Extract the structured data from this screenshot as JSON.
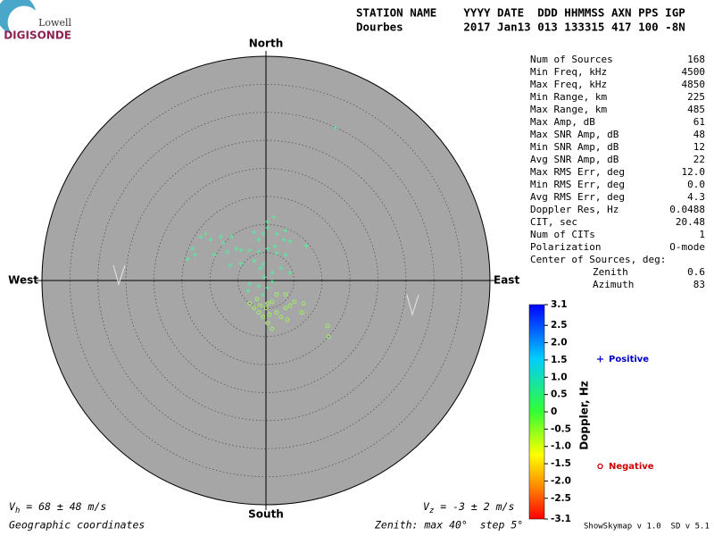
{
  "logo": {
    "top": "Lowell",
    "bottom": "DIGISONDE"
  },
  "header": {
    "line1": "STATION NAME    YYYY DATE  DDD HHMMSS AXN PPS IGP",
    "line2": "Dourbes         2017 Jan13 013 133315 417 100 -8N"
  },
  "stats": [
    [
      "Num of Sources",
      "168"
    ],
    [
      "Min Freq, kHz",
      "4500"
    ],
    [
      "Max Freq, kHz",
      "4850"
    ],
    [
      "Min Range, km",
      "225"
    ],
    [
      "Max Range, km",
      "485"
    ],
    [
      "Max Amp, dB",
      "61"
    ],
    [
      "Max SNR Amp, dB",
      "48"
    ],
    [
      "Min SNR Amp, dB",
      "12"
    ],
    [
      "Avg SNR Amp, dB",
      "22"
    ],
    [
      "Max RMS Err, deg",
      "12.0"
    ],
    [
      "Min RMS Err, deg",
      "0.0"
    ],
    [
      "Avg RMS Err, deg",
      "4.3"
    ],
    [
      "Doppler Res, Hz",
      "0.0488"
    ],
    [
      "CIT, sec",
      "20.48"
    ],
    [
      "Num of CITs",
      "1"
    ],
    [
      "Polarization",
      "O-mode"
    ]
  ],
  "center_of_sources": {
    "title": "Center of Sources, deg:",
    "rows": [
      [
        "Zenith",
        "0.6"
      ],
      [
        "Azimuth",
        "83"
      ]
    ]
  },
  "footer": {
    "vh": {
      "symbol": "V",
      "subscript": "h",
      "text": " = 68 ± 48 m/s"
    },
    "vz": {
      "symbol": "V",
      "subscript": "z",
      "text": " = -3 ± 2 m/s"
    },
    "coords": "Geographic coordinates",
    "zenith": "Zenith: max 40°  step 5°",
    "version": "ShowSkymap v 1.0  SD v 5.1"
  },
  "chart_data": {
    "type": "skymap",
    "directions": {
      "north": "North",
      "south": "South",
      "east": "East",
      "west": "West"
    },
    "xlim": [
      -40,
      40
    ],
    "ylim": [
      -40,
      40
    ],
    "rticks": [
      5,
      10,
      15,
      20,
      25,
      30,
      35,
      40
    ],
    "series": [
      {
        "name": "Positive",
        "marker": "plus",
        "color": "#55eea0",
        "legend_color": "#0000cc",
        "x": [
          0.3,
          0.3,
          1.4,
          -0.5,
          -2.1,
          -1.3,
          1.9,
          3.5,
          3.2,
          4.3,
          7.2,
          -6.1,
          -7.6,
          -9.9,
          -11.6,
          -14.0,
          -12.7,
          -13.2,
          -9.2,
          -6.9,
          -4.5,
          -2.9,
          -1.3,
          0.3,
          1.9,
          3.5,
          -6.4,
          -4.5,
          -2.1,
          -0.5,
          1.1,
          2.7,
          4.3,
          -2.9,
          -1.3,
          0.3,
          -3.2,
          -0.5,
          1.1,
          12.4,
          -5.3,
          -10.8,
          -8.0,
          1.6,
          -0.3,
          -1.0
        ],
        "y": [
          10.5,
          9.4,
          11.3,
          8.3,
          8.6,
          7.3,
          8.3,
          8.9,
          7.3,
          7.0,
          6.2,
          7.8,
          6.7,
          7.3,
          7.8,
          3.8,
          4.6,
          5.7,
          4.6,
          5.1,
          5.4,
          5.4,
          5.1,
          5.7,
          4.9,
          4.6,
          2.7,
          3.0,
          3.5,
          2.9,
          1.4,
          2.2,
          1.4,
          -0.6,
          -1.0,
          -1.3,
          -1.8,
          -2.5,
          -0.2,
          27.3,
          5.7,
          8.3,
          7.8,
          6.1,
          0.6,
          2.2
        ]
      },
      {
        "name": "Negative",
        "marker": "circle",
        "color": "#a0ee66",
        "legend_color": "#cc0000",
        "x": [
          0.3,
          0.0,
          1.1,
          -1.0,
          -2.1,
          -1.3,
          1.9,
          3.5,
          4.3,
          5.1,
          6.7,
          6.4,
          3.8,
          0.3,
          1.1,
          1.9,
          3.5,
          -1.6,
          -0.5,
          11.0,
          11.2,
          -2.9,
          0.6,
          2.7
        ],
        "y": [
          -4.1,
          -4.9,
          -3.8,
          -4.5,
          -4.9,
          -5.7,
          -5.7,
          -4.9,
          -4.5,
          -3.8,
          -4.1,
          -5.7,
          -7.0,
          -7.6,
          -8.6,
          -2.5,
          -2.5,
          -3.3,
          -6.5,
          -8.1,
          -10.0,
          -4.1,
          -6.1,
          -6.5
        ]
      }
    ],
    "colorbar": {
      "label": "Doppler, Hz",
      "lim": [
        -3.1,
        3.1
      ],
      "ticks": [
        3.1,
        2.5,
        {
          "value": 2,
          "label": "2.0"
        },
        1.5,
        {
          "value": 1,
          "label": "1.0"
        },
        0.5,
        0,
        -0.5,
        {
          "value": -1,
          "label": "-1.0"
        },
        -1.5,
        {
          "value": -2,
          "label": "-2.0"
        },
        -2.5,
        -3.1
      ]
    }
  }
}
